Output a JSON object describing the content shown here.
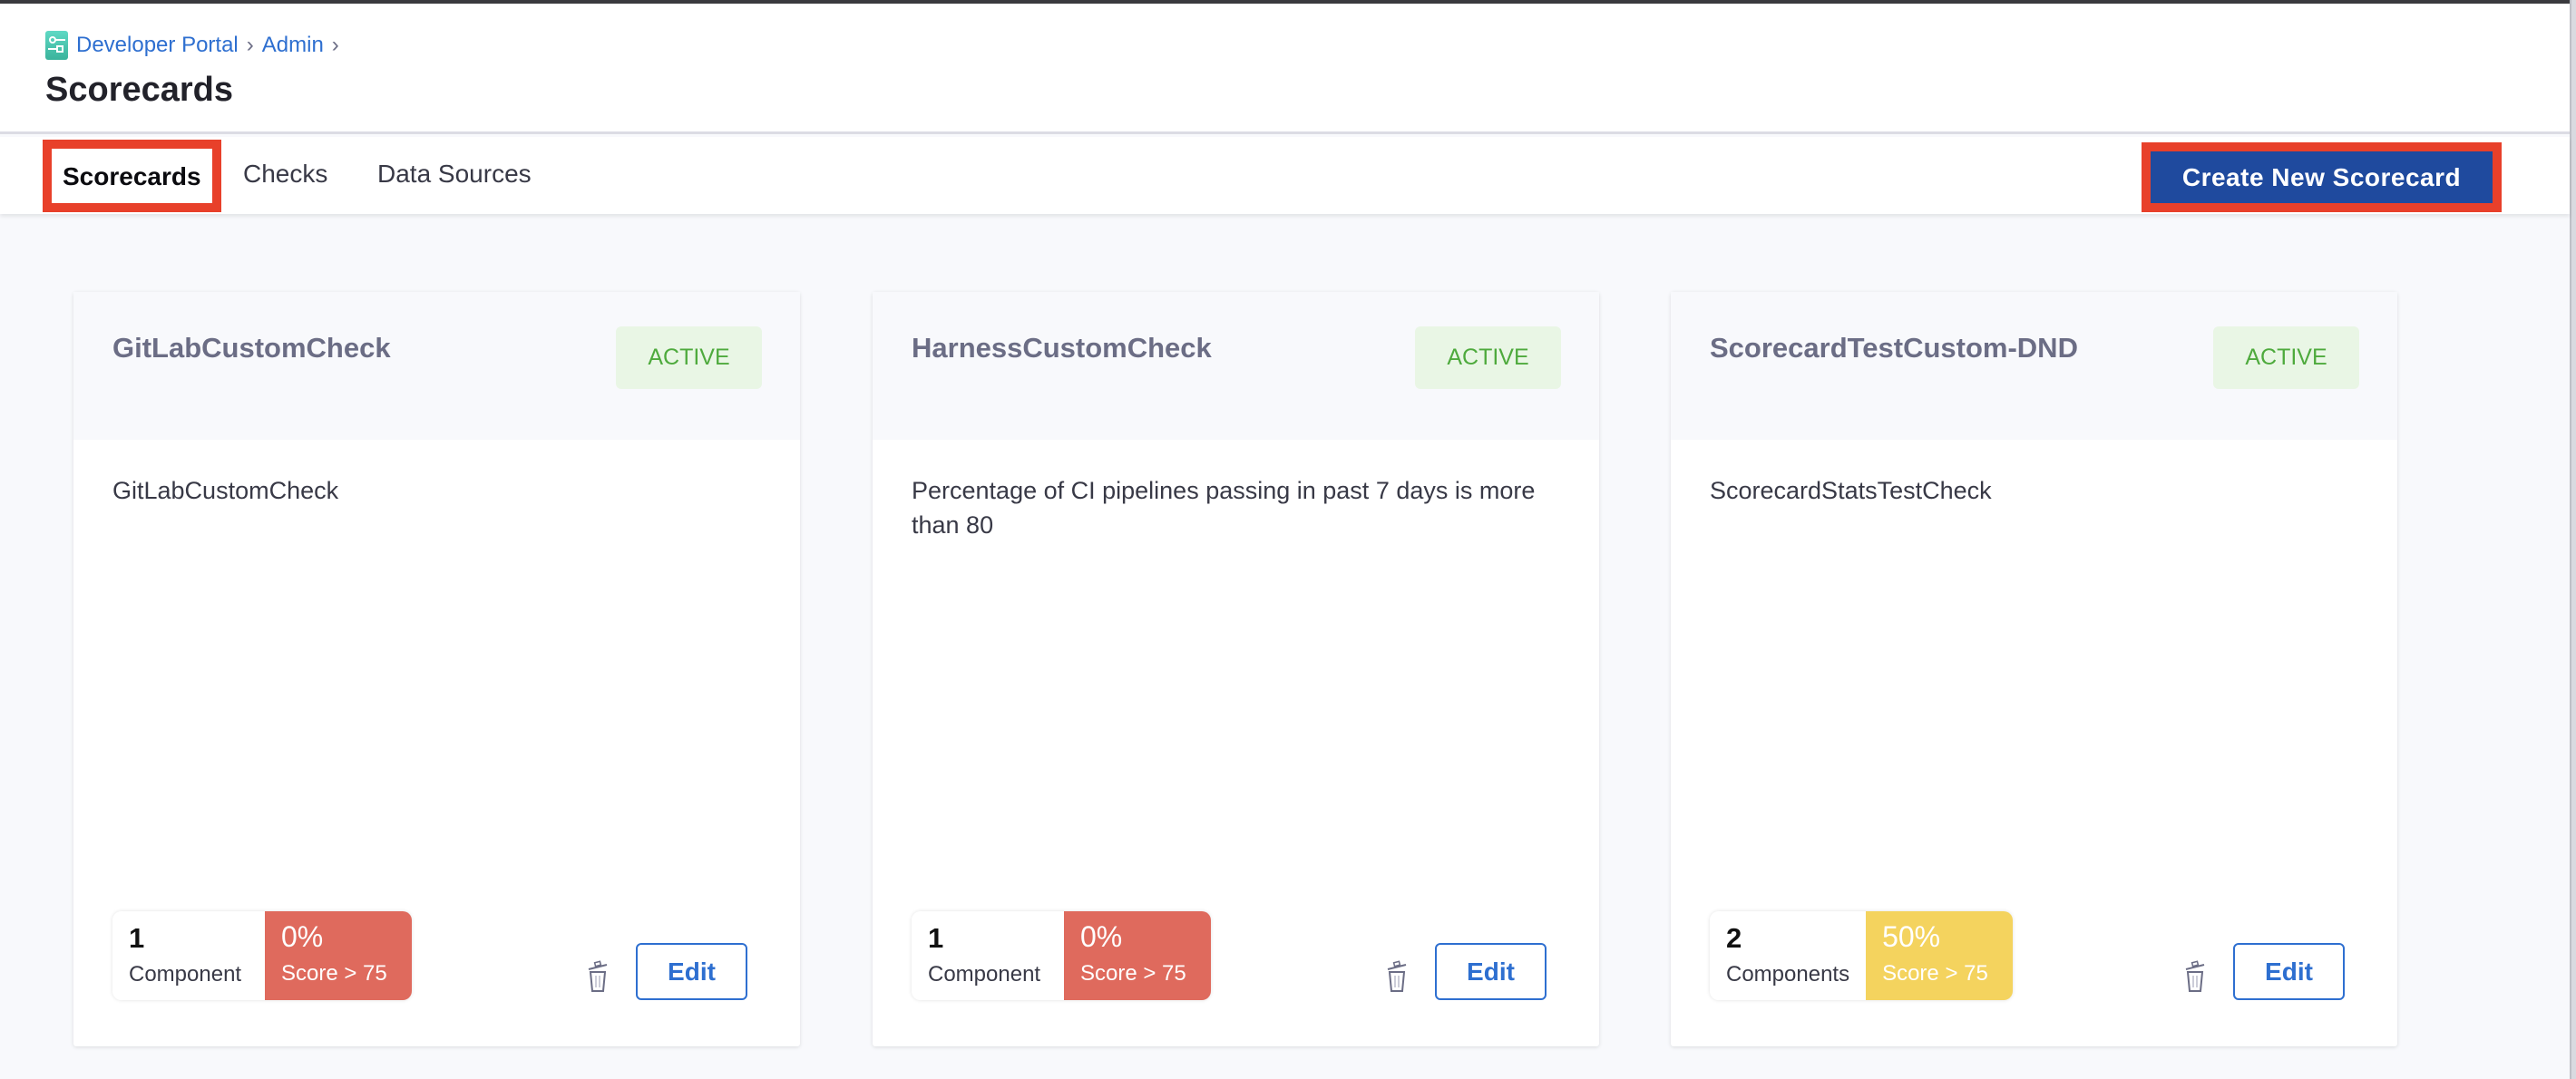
{
  "breadcrumb": {
    "items": [
      "Developer Portal",
      "Admin"
    ]
  },
  "page": {
    "title": "Scorecards"
  },
  "tabs": [
    {
      "label": "Scorecards",
      "active": true
    },
    {
      "label": "Checks"
    },
    {
      "label": "Data Sources"
    }
  ],
  "actions": {
    "create_label": "Create New Scorecard"
  },
  "colors": {
    "primary": "#1f4a9e",
    "highlight": "#e8402a",
    "score_low": "#df6a5d",
    "score_mid": "#f4d35e",
    "active_bg": "#e9f6e5",
    "active_text": "#4eaa3d"
  },
  "cards": [
    {
      "title": "GitLabCustomCheck",
      "status": "ACTIVE",
      "description": "GitLabCustomCheck",
      "count": "1",
      "count_label": "Component",
      "score": "0%",
      "threshold": "Score > 75",
      "score_color": "#df6a5d",
      "edit_label": "Edit"
    },
    {
      "title": "HarnessCustomCheck",
      "status": "ACTIVE",
      "description": "Percentage of CI pipelines passing in past 7 days is more than 80",
      "count": "1",
      "count_label": "Component",
      "score": "0%",
      "threshold": "Score > 75",
      "score_color": "#df6a5d",
      "edit_label": "Edit"
    },
    {
      "title": "ScorecardTestCustom-DND",
      "status": "ACTIVE",
      "description": "ScorecardStatsTestCheck",
      "count": "2",
      "count_label": "Components",
      "score": "50%",
      "threshold": "Score > 75",
      "score_color": "#f4d35e",
      "edit_label": "Edit"
    }
  ]
}
